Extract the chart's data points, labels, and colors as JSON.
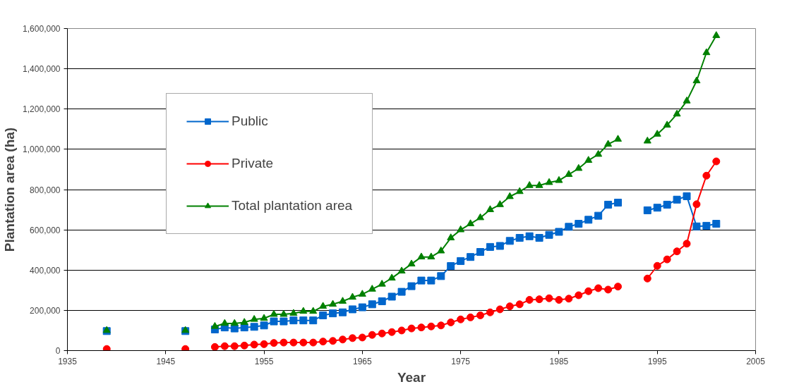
{
  "chart_data": {
    "type": "line",
    "xlabel": "Year",
    "ylabel": "Plantation area (ha)",
    "x": [
      1939,
      1940,
      1947,
      1948,
      1950,
      1951,
      1952,
      1953,
      1954,
      1955,
      1956,
      1957,
      1958,
      1959,
      1960,
      1961,
      1962,
      1963,
      1964,
      1965,
      1966,
      1967,
      1968,
      1969,
      1970,
      1971,
      1972,
      1973,
      1974,
      1975,
      1976,
      1977,
      1978,
      1979,
      1980,
      1981,
      1982,
      1983,
      1984,
      1985,
      1986,
      1987,
      1988,
      1989,
      1990,
      1991,
      1992,
      1994,
      1995,
      1996,
      1997,
      1998,
      1999,
      2000,
      2001
    ],
    "series": [
      {
        "name": "Public",
        "color": "#0066cc",
        "marker": "square",
        "values": [
          97000,
          null,
          97000,
          null,
          105000,
          115000,
          110000,
          115000,
          118000,
          125000,
          145000,
          145000,
          150000,
          150000,
          150000,
          175000,
          185000,
          190000,
          205000,
          215000,
          230000,
          245000,
          268000,
          292000,
          320000,
          348000,
          348000,
          370000,
          420000,
          445000,
          465000,
          490000,
          515000,
          520000,
          545000,
          560000,
          568000,
          560000,
          575000,
          590000,
          615000,
          630000,
          650000,
          670000,
          725000,
          735000,
          null,
          697000,
          710000,
          725000,
          750000,
          767000,
          617000,
          620000,
          630000
        ]
      },
      {
        "name": "Private",
        "color": "#ff0000",
        "marker": "circle",
        "values": [
          8000,
          null,
          8000,
          null,
          18000,
          22000,
          22000,
          25000,
          30000,
          32000,
          38000,
          40000,
          40000,
          40000,
          40000,
          45000,
          48000,
          55000,
          62000,
          65000,
          78000,
          85000,
          92000,
          100000,
          110000,
          115000,
          120000,
          125000,
          140000,
          155000,
          165000,
          175000,
          190000,
          205000,
          220000,
          230000,
          252000,
          255000,
          260000,
          252000,
          258000,
          275000,
          295000,
          310000,
          303000,
          318000,
          null,
          358000,
          421000,
          453000,
          493000,
          531000,
          727000,
          869000,
          940000
        ]
      },
      {
        "name": "Total plantation area",
        "color": "#008000",
        "marker": "triangle",
        "values": [
          100000,
          null,
          100000,
          null,
          120000,
          135000,
          135000,
          140000,
          155000,
          160000,
          180000,
          180000,
          185000,
          195000,
          195000,
          220000,
          230000,
          245000,
          265000,
          280000,
          305000,
          330000,
          360000,
          395000,
          430000,
          465000,
          465000,
          495000,
          560000,
          600000,
          630000,
          660000,
          700000,
          725000,
          765000,
          790000,
          820000,
          820000,
          835000,
          845000,
          875000,
          905000,
          945000,
          975000,
          1025000,
          1050000,
          null,
          1041000,
          1075000,
          1120000,
          1175000,
          1240000,
          1340000,
          1480000,
          1565000
        ]
      }
    ],
    "xlim": [
      1935,
      2005
    ],
    "xticks": [
      1935,
      1945,
      1955,
      1965,
      1975,
      1985,
      1995,
      2005
    ],
    "ylim": [
      0,
      1600000
    ],
    "yticks": [
      {
        "value": 0,
        "label": "0"
      },
      {
        "value": 200000,
        "label": "200,000"
      },
      {
        "value": 400000,
        "label": "400,000"
      },
      {
        "value": 600000,
        "label": "600,000"
      },
      {
        "value": 800000,
        "label": "800,000"
      },
      {
        "value": 1000000,
        "label": "1,000,000"
      },
      {
        "value": 1200000,
        "label": "1,200,000"
      },
      {
        "value": 1400000,
        "label": "1,400,000"
      },
      {
        "value": 1600000,
        "label": "1,600,000"
      }
    ],
    "grid": "y",
    "legend": "top left",
    "line_style": "solid"
  }
}
